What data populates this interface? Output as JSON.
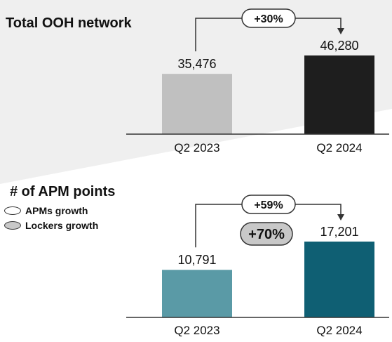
{
  "chart_data": [
    {
      "type": "bar",
      "title": "Total OOH network",
      "categories": [
        "Q2 2023",
        "Q2 2024"
      ],
      "values": [
        35476,
        46280
      ],
      "value_labels": [
        "35,476",
        "46,280"
      ],
      "bar_colors": [
        "#c0c0c0",
        "#1e1e1e"
      ],
      "growth_label": "+30%",
      "ylim": [
        0,
        46280
      ]
    },
    {
      "type": "bar",
      "title": "# of APM points",
      "categories": [
        "Q2 2023",
        "Q2 2024"
      ],
      "values": [
        10791,
        17201
      ],
      "value_labels": [
        "10,791",
        "17,201"
      ],
      "bar_colors": [
        "#5a9aa6",
        "#0f5f73"
      ],
      "growth_label": "+59%",
      "lockers_growth_label": "+70%",
      "legend": [
        {
          "label": "APMs growth",
          "fill": "#ffffff"
        },
        {
          "label": "Lockers growth",
          "fill": "#c8c8c8"
        }
      ],
      "ylim": [
        0,
        17201
      ]
    }
  ],
  "colors": {
    "background_band": "#efefef",
    "axis": "#333333",
    "connector": "#333333"
  }
}
